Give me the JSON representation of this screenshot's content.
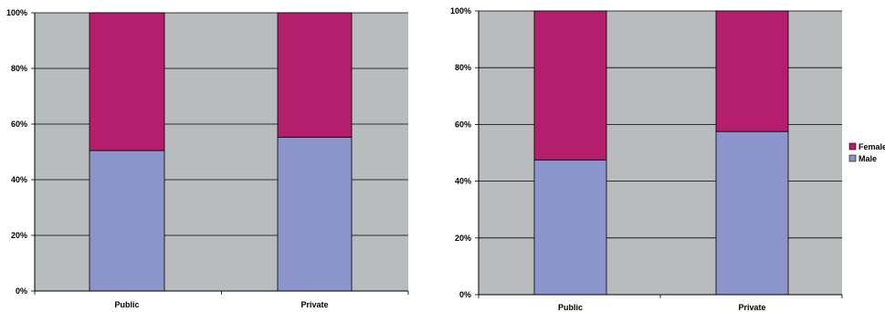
{
  "chart_data": [
    {
      "type": "bar",
      "stacked": true,
      "percent": true,
      "categories": [
        "Public",
        "Private"
      ],
      "series": [
        {
          "name": "Male",
          "values": [
            50.5,
            55.3
          ]
        },
        {
          "name": "Female",
          "values": [
            49.5,
            44.7
          ]
        }
      ],
      "yticks": [
        "0%",
        "20%",
        "40%",
        "60%",
        "80%",
        "100%"
      ],
      "ylim": [
        0,
        100
      ],
      "grid": true,
      "legend": "none"
    },
    {
      "type": "bar",
      "stacked": true,
      "percent": true,
      "categories": [
        "Public",
        "Private"
      ],
      "series": [
        {
          "name": "Male",
          "values": [
            47.5,
            57.5
          ]
        },
        {
          "name": "Female",
          "values": [
            52.5,
            42.5
          ]
        }
      ],
      "yticks": [
        "0%",
        "20%",
        "40%",
        "60%",
        "80%",
        "100%"
      ],
      "ylim": [
        0,
        100
      ],
      "grid": true,
      "legend": "right"
    }
  ],
  "colors": {
    "male": "#8c94cc",
    "female": "#b41e6c",
    "plot_bg": "#b8bcbc",
    "grid": "#000000"
  }
}
